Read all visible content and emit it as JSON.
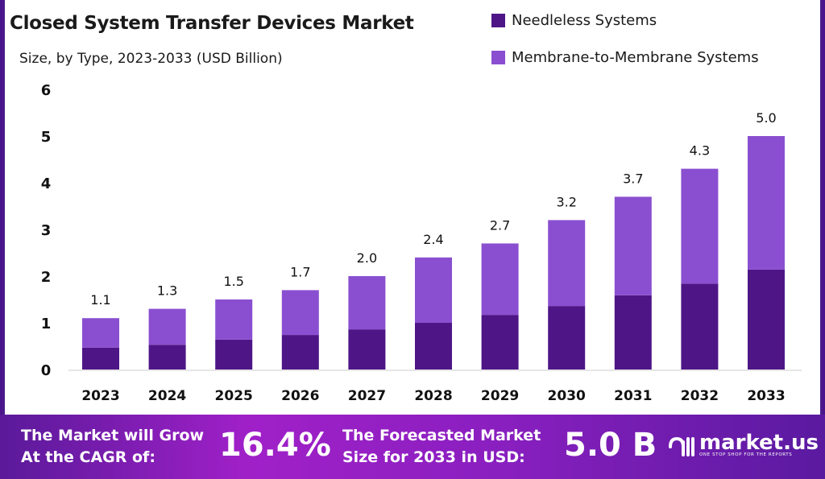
{
  "chart_data": {
    "type": "bar",
    "stacked": true,
    "title": "Closed System Transfer Devices Market",
    "subtitle": "Size, by Type, 2023-2033 (USD Billion)",
    "categories": [
      "2023",
      "2024",
      "2025",
      "2026",
      "2027",
      "2028",
      "2029",
      "2030",
      "2031",
      "2032",
      "2033"
    ],
    "series": [
      {
        "name": "Needleless Systems",
        "color": "#4e1587",
        "values": [
          0.47,
          0.53,
          0.64,
          0.74,
          0.86,
          1.0,
          1.17,
          1.36,
          1.59,
          1.84,
          2.14
        ]
      },
      {
        "name": "Membrane-to-Membrane Systems",
        "color": "#8a4fd0",
        "values": [
          0.63,
          0.77,
          0.86,
          0.96,
          1.14,
          1.4,
          1.53,
          1.84,
          2.11,
          2.46,
          2.86
        ]
      }
    ],
    "totals": [
      "1.1",
      "1.3",
      "1.5",
      "1.7",
      "2.0",
      "2.4",
      "2.7",
      "3.2",
      "3.7",
      "4.3",
      "5.0"
    ],
    "yticks": [
      "0",
      "1",
      "2",
      "3",
      "4",
      "5",
      "6"
    ],
    "ylim": [
      0,
      6
    ],
    "grid": false,
    "legend": "top-right"
  },
  "footer": {
    "cagr_label_1": "The Market will Grow",
    "cagr_label_2": "At the CAGR of:",
    "cagr_value": "16.4%",
    "forecast_label_1": "The Forecasted Market",
    "forecast_label_2": "Size for 2033 in USD:",
    "forecast_value": "5.0 B",
    "logo_name": "market.us",
    "logo_tagline": "ONE STOP SHOP FOR THE REPORTS"
  }
}
